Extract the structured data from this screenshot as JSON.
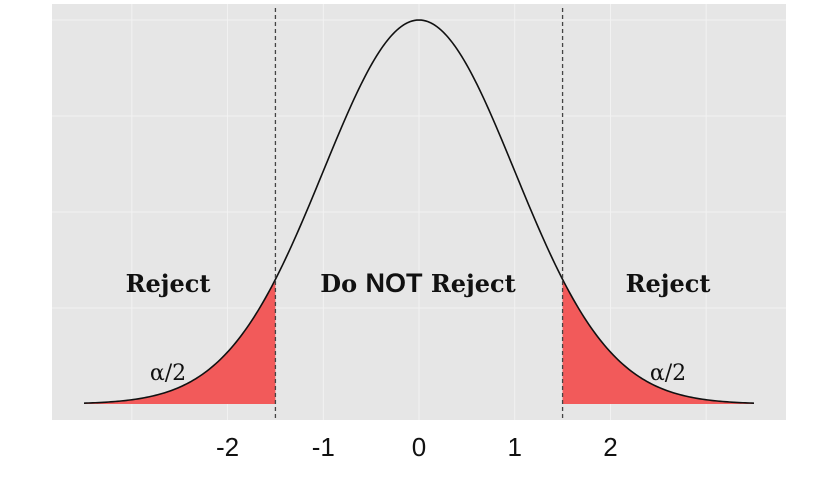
{
  "chart_data": {
    "type": "area",
    "title": "",
    "xlabel": "",
    "ylabel": "",
    "distribution": "standard normal",
    "xlim": [
      -3.5,
      3.5
    ],
    "ylim": [
      0,
      0.4
    ],
    "critical_values": [
      -1.5,
      1.5
    ],
    "x_ticks": [
      -2,
      -1,
      0,
      1,
      2
    ],
    "x_tick_labels": [
      "-2",
      "-1",
      "0",
      "1",
      "2"
    ],
    "regions": [
      {
        "label": "Reject",
        "tail": "α/2"
      },
      {
        "label_prefix": "Do ",
        "label_bold": "NOT",
        "label_suffix": " Reject"
      },
      {
        "label": "Reject",
        "tail": "α/2"
      }
    ],
    "grid": true,
    "colors": {
      "panel_background": "#e6e6e6",
      "grid": "#f2f2f2",
      "curve": "#111111",
      "rejection_fill": "#f25a5a",
      "critical_line": "#444444"
    }
  }
}
